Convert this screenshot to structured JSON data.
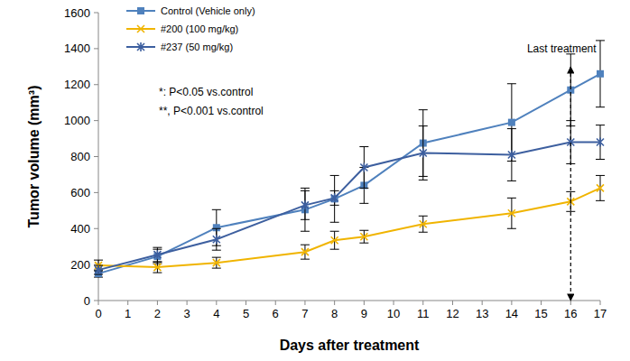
{
  "chart_data": {
    "type": "line",
    "x_label": "Days after treatment",
    "y_label": "Tumor volume (mm³)",
    "xlim": [
      0,
      17
    ],
    "xticks": [
      0,
      1,
      2,
      3,
      4,
      5,
      6,
      7,
      8,
      9,
      10,
      11,
      12,
      13,
      14,
      15,
      16,
      17
    ],
    "ylim": [
      0,
      1600
    ],
    "yticks": [
      0,
      200,
      400,
      600,
      800,
      1000,
      1200,
      1400,
      1600
    ],
    "grid": false,
    "legend": "upper left",
    "x": [
      0,
      2,
      4,
      7,
      8,
      9,
      11,
      14,
      16,
      17
    ],
    "series": [
      {
        "name": "Control (Vehicle only)",
        "color": "#4f81bd",
        "marker": "square",
        "line_style": "solid",
        "values": [
          150,
          245,
          405,
          505,
          565,
          640,
          875,
          990,
          1170,
          1260
        ],
        "errors": [
          20,
          40,
          100,
          120,
          130,
          100,
          185,
          215,
          200,
          185
        ]
      },
      {
        "name": "#200 (100 mg/kg)",
        "color": "#f0b400",
        "marker": "x",
        "line_style": "solid",
        "values": [
          195,
          185,
          210,
          270,
          335,
          355,
          425,
          485,
          550,
          625
        ],
        "errors": [
          30,
          30,
          30,
          40,
          50,
          35,
          45,
          85,
          55,
          70
        ]
      },
      {
        "name": "#237 (50 mg/kg)",
        "color": "#3d5f9f",
        "marker": "star",
        "line_style": "solid",
        "values": [
          170,
          255,
          340,
          530,
          570,
          740,
          820,
          810,
          880,
          880
        ],
        "errors": [
          25,
          40,
          60,
          80,
          40,
          115,
          150,
          145,
          120,
          95
        ]
      }
    ],
    "notes": [
      "*: P<0.05 vs.control",
      "**, P<0.001 vs.control"
    ],
    "vline": {
      "x": 16,
      "label": "Last treatment"
    }
  }
}
